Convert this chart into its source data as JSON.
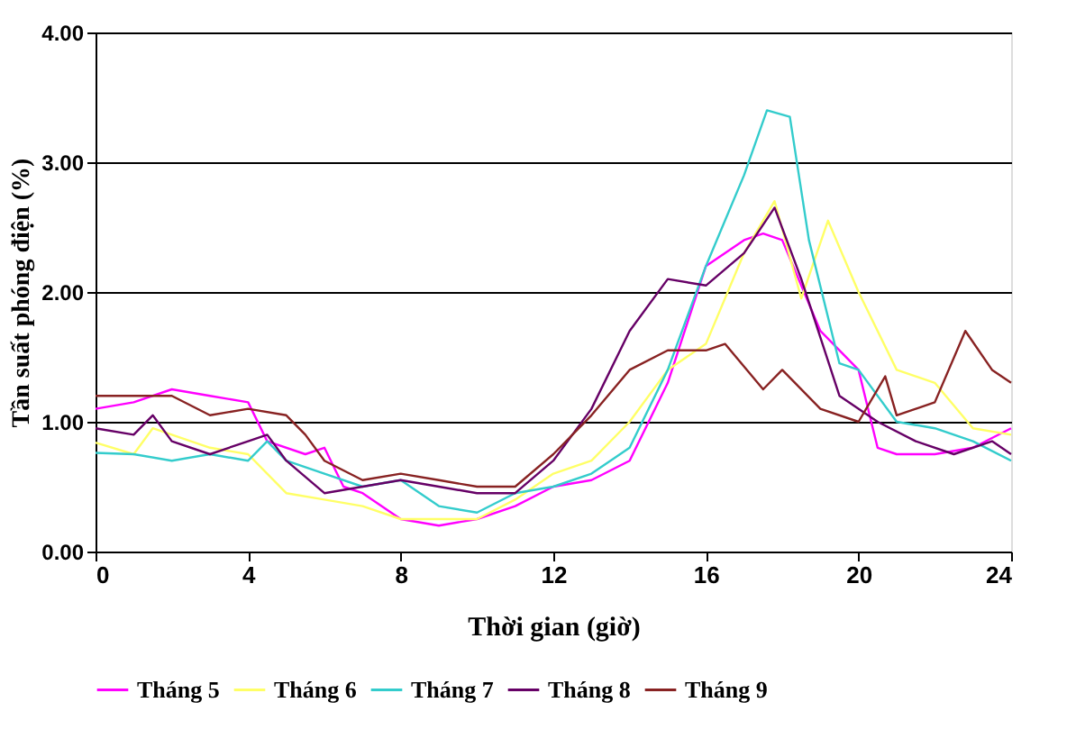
{
  "chart_data": {
    "type": "line",
    "xlabel": "Thời gian (giờ)",
    "ylabel": "Tần suất phóng điện (%)",
    "xlim": [
      0,
      24
    ],
    "xticks": [
      0,
      4,
      8,
      12,
      16,
      20,
      24
    ],
    "ylim": [
      0,
      4
    ],
    "yticks": [
      {
        "value": 0,
        "label": "0.00"
      },
      {
        "value": 1,
        "label": "1.00"
      },
      {
        "value": 2,
        "label": "2.00"
      },
      {
        "value": 3,
        "label": "3.00"
      },
      {
        "value": 4,
        "label": "4.00"
      }
    ],
    "grid": "y",
    "legend": "bottom",
    "marker": "none",
    "line_style": "solid",
    "series": [
      {
        "name": "Tháng 5",
        "color": "#ff00ff",
        "x": [
          0,
          1,
          2,
          3,
          4,
          4.5,
          5.5,
          6,
          6.5,
          7,
          8,
          9,
          10,
          11,
          12,
          13,
          14,
          15,
          16,
          17,
          17.5,
          18,
          19,
          20,
          20.5,
          21,
          22,
          23,
          24
        ],
        "values": [
          1.1,
          1.15,
          1.25,
          1.2,
          1.15,
          0.85,
          0.75,
          0.8,
          0.5,
          0.45,
          0.25,
          0.2,
          0.25,
          0.35,
          0.5,
          0.55,
          0.7,
          1.3,
          2.2,
          2.4,
          2.45,
          2.4,
          1.7,
          1.4,
          0.8,
          0.75,
          0.75,
          0.8,
          0.95
        ]
      },
      {
        "name": "Tháng 6",
        "color": "#ffff66",
        "x": [
          0,
          1,
          1.5,
          2,
          3,
          4,
          4.5,
          5,
          6,
          7,
          8,
          9,
          10,
          11,
          12,
          13,
          14,
          15,
          16,
          17,
          17.8,
          18.5,
          19.2,
          20,
          21,
          22,
          23,
          24
        ],
        "values": [
          0.84,
          0.75,
          0.95,
          0.9,
          0.8,
          0.75,
          0.6,
          0.45,
          0.4,
          0.35,
          0.25,
          0.25,
          0.25,
          0.4,
          0.6,
          0.7,
          1.0,
          1.4,
          1.6,
          2.3,
          2.7,
          1.95,
          2.55,
          2.0,
          1.4,
          1.3,
          0.95,
          0.9
        ]
      },
      {
        "name": "Tháng 7",
        "color": "#33cccc",
        "x": [
          0,
          1,
          2,
          3,
          4,
          4.5,
          5,
          6,
          7,
          8,
          9,
          10,
          11,
          12,
          13,
          14,
          15,
          16,
          17,
          17.6,
          18.2,
          18.7,
          19.5,
          20,
          21,
          22,
          23,
          24
        ],
        "values": [
          0.76,
          0.75,
          0.7,
          0.75,
          0.7,
          0.85,
          0.7,
          0.6,
          0.5,
          0.55,
          0.35,
          0.3,
          0.45,
          0.5,
          0.6,
          0.8,
          1.4,
          2.2,
          2.9,
          3.4,
          3.35,
          2.4,
          1.45,
          1.4,
          1.0,
          0.95,
          0.85,
          0.7
        ]
      },
      {
        "name": "Tháng 8",
        "color": "#660066",
        "x": [
          0,
          1,
          1.5,
          2,
          3,
          4,
          4.5,
          5,
          6,
          7,
          8,
          9,
          10,
          11,
          12,
          13,
          14,
          15,
          16,
          17,
          17.8,
          18.5,
          19.5,
          20.5,
          21.5,
          22.5,
          23.5,
          24
        ],
        "values": [
          0.95,
          0.9,
          1.05,
          0.85,
          0.75,
          0.85,
          0.9,
          0.7,
          0.45,
          0.5,
          0.55,
          0.5,
          0.45,
          0.45,
          0.7,
          1.1,
          1.7,
          2.1,
          2.05,
          2.3,
          2.65,
          2.1,
          1.2,
          1.0,
          0.85,
          0.75,
          0.85,
          0.75
        ]
      },
      {
        "name": "Tháng 9",
        "color": "#882222",
        "x": [
          0,
          1,
          2,
          3,
          4,
          5,
          5.5,
          6,
          7,
          8,
          9,
          10,
          11,
          12,
          13,
          14,
          15,
          16,
          16.5,
          17.5,
          18,
          19,
          20,
          20.7,
          21,
          22,
          22.8,
          23.5,
          24
        ],
        "values": [
          1.2,
          1.2,
          1.2,
          1.05,
          1.1,
          1.05,
          0.9,
          0.7,
          0.55,
          0.6,
          0.55,
          0.5,
          0.5,
          0.75,
          1.05,
          1.4,
          1.55,
          1.55,
          1.6,
          1.25,
          1.4,
          1.1,
          1.0,
          1.35,
          1.05,
          1.15,
          1.7,
          1.4,
          1.3
        ]
      }
    ]
  }
}
